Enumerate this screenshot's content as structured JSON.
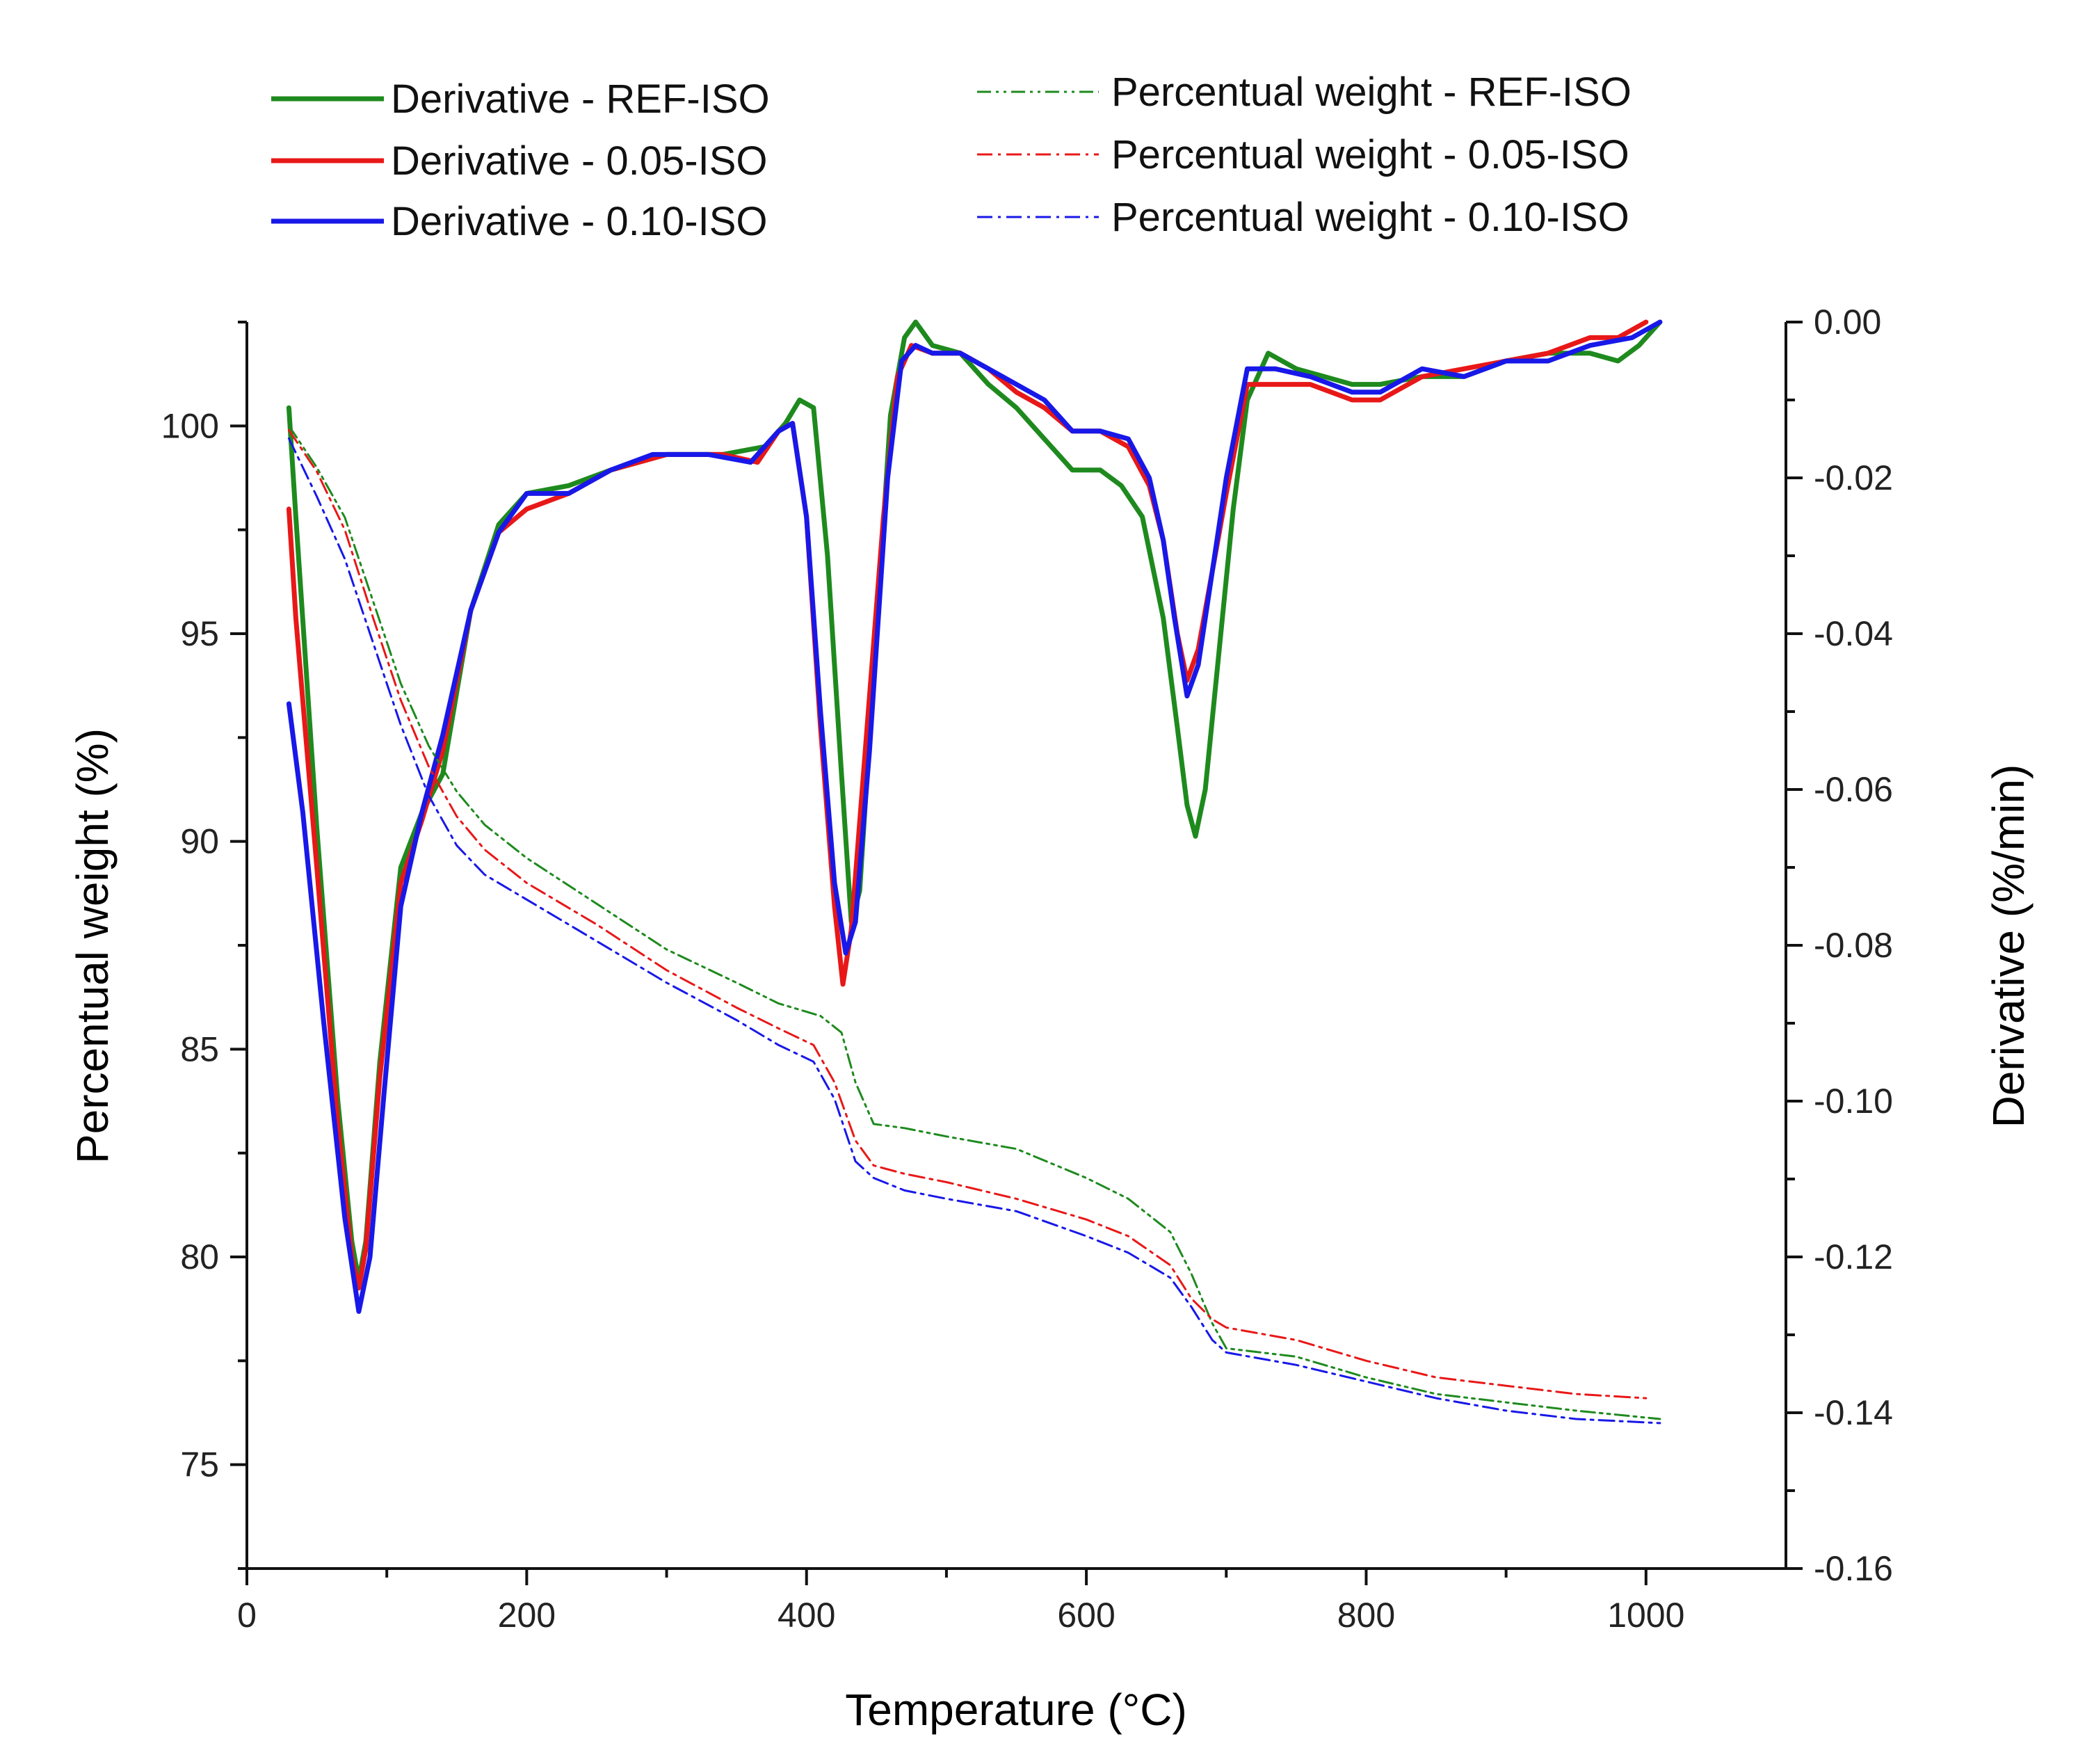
{
  "chart_data": {
    "type": "line",
    "title": "",
    "xlabel": "Temperature (°C)",
    "ylabel_left": "Percentual weight (%)",
    "ylabel_right": "Derivative (%/min)",
    "xlim": [
      0,
      1100
    ],
    "ylim_left": [
      72.5,
      102.5
    ],
    "ylim_right": [
      -0.16,
      0.0
    ],
    "x_ticks": [
      0,
      200,
      400,
      600,
      800,
      1000
    ],
    "x_tick_labels": [
      "0",
      "200",
      "400",
      "600",
      "800",
      "1000"
    ],
    "y_left_ticks": [
      75,
      80,
      85,
      90,
      95,
      100
    ],
    "y_left_tick_labels": [
      "75",
      "80",
      "85",
      "90",
      "95",
      "100"
    ],
    "y_right_ticks": [
      -0.16,
      -0.14,
      -0.12,
      -0.1,
      -0.08,
      -0.06,
      -0.04,
      -0.02,
      0.0
    ],
    "y_right_tick_labels": [
      "-0.16",
      "-0.14",
      "-0.12",
      "-0.10",
      "-0.08",
      "-0.06",
      "-0.04",
      "-0.02",
      "0.00"
    ],
    "grid": false,
    "legend_position": "top",
    "series": [
      {
        "name": "Derivative - REF-ISO",
        "axis": "right",
        "style": "solid",
        "color": "#1e8a1e",
        "points": [
          [
            30,
            -0.011
          ],
          [
            35,
            -0.025
          ],
          [
            50,
            -0.065
          ],
          [
            65,
            -0.1
          ],
          [
            75,
            -0.118
          ],
          [
            80,
            -0.123
          ],
          [
            85,
            -0.118
          ],
          [
            95,
            -0.095
          ],
          [
            110,
            -0.07
          ],
          [
            125,
            -0.063
          ],
          [
            140,
            -0.058
          ],
          [
            160,
            -0.037
          ],
          [
            180,
            -0.026
          ],
          [
            200,
            -0.022
          ],
          [
            230,
            -0.021
          ],
          [
            260,
            -0.019
          ],
          [
            300,
            -0.017
          ],
          [
            340,
            -0.017
          ],
          [
            370,
            -0.016
          ],
          [
            385,
            -0.013
          ],
          [
            395,
            -0.01
          ],
          [
            405,
            -0.011
          ],
          [
            415,
            -0.03
          ],
          [
            425,
            -0.058
          ],
          [
            432,
            -0.077
          ],
          [
            438,
            -0.073
          ],
          [
            448,
            -0.045
          ],
          [
            460,
            -0.012
          ],
          [
            470,
            -0.002
          ],
          [
            478,
            0.0
          ],
          [
            490,
            -0.003
          ],
          [
            510,
            -0.004
          ],
          [
            530,
            -0.008
          ],
          [
            550,
            -0.011
          ],
          [
            570,
            -0.015
          ],
          [
            590,
            -0.019
          ],
          [
            610,
            -0.019
          ],
          [
            625,
            -0.021
          ],
          [
            640,
            -0.025
          ],
          [
            655,
            -0.038
          ],
          [
            665,
            -0.052
          ],
          [
            672,
            -0.062
          ],
          [
            678,
            -0.066
          ],
          [
            685,
            -0.06
          ],
          [
            695,
            -0.042
          ],
          [
            705,
            -0.024
          ],
          [
            715,
            -0.01
          ],
          [
            730,
            -0.004
          ],
          [
            750,
            -0.006
          ],
          [
            770,
            -0.007
          ],
          [
            790,
            -0.008
          ],
          [
            810,
            -0.008
          ],
          [
            840,
            -0.007
          ],
          [
            870,
            -0.007
          ],
          [
            900,
            -0.005
          ],
          [
            930,
            -0.004
          ],
          [
            950,
            -0.004
          ],
          [
            960,
            -0.004
          ],
          [
            980,
            -0.005
          ],
          [
            995,
            -0.003
          ],
          [
            1010,
            0.0
          ]
        ]
      },
      {
        "name": "Derivative - 0.05-ISO",
        "axis": "right",
        "style": "solid",
        "color": "#e81818",
        "points": [
          [
            30,
            -0.024
          ],
          [
            35,
            -0.038
          ],
          [
            50,
            -0.07
          ],
          [
            65,
            -0.103
          ],
          [
            75,
            -0.12
          ],
          [
            80,
            -0.124
          ],
          [
            85,
            -0.119
          ],
          [
            95,
            -0.097
          ],
          [
            110,
            -0.072
          ],
          [
            125,
            -0.064
          ],
          [
            140,
            -0.055
          ],
          [
            160,
            -0.037
          ],
          [
            180,
            -0.027
          ],
          [
            200,
            -0.024
          ],
          [
            230,
            -0.022
          ],
          [
            260,
            -0.019
          ],
          [
            300,
            -0.017
          ],
          [
            340,
            -0.017
          ],
          [
            365,
            -0.018
          ],
          [
            380,
            -0.014
          ],
          [
            390,
            -0.013
          ],
          [
            400,
            -0.025
          ],
          [
            410,
            -0.052
          ],
          [
            420,
            -0.075
          ],
          [
            426,
            -0.085
          ],
          [
            432,
            -0.078
          ],
          [
            442,
            -0.055
          ],
          [
            455,
            -0.025
          ],
          [
            465,
            -0.007
          ],
          [
            475,
            -0.003
          ],
          [
            490,
            -0.004
          ],
          [
            510,
            -0.004
          ],
          [
            530,
            -0.006
          ],
          [
            550,
            -0.009
          ],
          [
            570,
            -0.011
          ],
          [
            590,
            -0.014
          ],
          [
            610,
            -0.014
          ],
          [
            630,
            -0.016
          ],
          [
            645,
            -0.021
          ],
          [
            655,
            -0.028
          ],
          [
            665,
            -0.04
          ],
          [
            672,
            -0.046
          ],
          [
            680,
            -0.042
          ],
          [
            690,
            -0.032
          ],
          [
            700,
            -0.022
          ],
          [
            715,
            -0.008
          ],
          [
            735,
            -0.008
          ],
          [
            760,
            -0.008
          ],
          [
            790,
            -0.01
          ],
          [
            810,
            -0.01
          ],
          [
            840,
            -0.007
          ],
          [
            870,
            -0.006
          ],
          [
            900,
            -0.005
          ],
          [
            930,
            -0.004
          ],
          [
            960,
            -0.002
          ],
          [
            980,
            -0.002
          ],
          [
            1000,
            0.0
          ]
        ]
      },
      {
        "name": "Derivative - 0.10-ISO",
        "axis": "right",
        "style": "solid",
        "color": "#1818e8",
        "points": [
          [
            30,
            -0.049
          ],
          [
            40,
            -0.063
          ],
          [
            55,
            -0.09
          ],
          [
            70,
            -0.115
          ],
          [
            80,
            -0.127
          ],
          [
            88,
            -0.12
          ],
          [
            98,
            -0.099
          ],
          [
            110,
            -0.075
          ],
          [
            125,
            -0.063
          ],
          [
            140,
            -0.053
          ],
          [
            160,
            -0.037
          ],
          [
            180,
            -0.027
          ],
          [
            200,
            -0.022
          ],
          [
            230,
            -0.022
          ],
          [
            260,
            -0.019
          ],
          [
            290,
            -0.017
          ],
          [
            330,
            -0.017
          ],
          [
            360,
            -0.018
          ],
          [
            380,
            -0.014
          ],
          [
            390,
            -0.013
          ],
          [
            400,
            -0.025
          ],
          [
            410,
            -0.05
          ],
          [
            420,
            -0.072
          ],
          [
            428,
            -0.081
          ],
          [
            435,
            -0.077
          ],
          [
            445,
            -0.055
          ],
          [
            458,
            -0.02
          ],
          [
            468,
            -0.005
          ],
          [
            478,
            -0.003
          ],
          [
            490,
            -0.004
          ],
          [
            510,
            -0.004
          ],
          [
            530,
            -0.006
          ],
          [
            550,
            -0.008
          ],
          [
            570,
            -0.01
          ],
          [
            590,
            -0.014
          ],
          [
            610,
            -0.014
          ],
          [
            630,
            -0.015
          ],
          [
            645,
            -0.02
          ],
          [
            655,
            -0.028
          ],
          [
            663,
            -0.038
          ],
          [
            672,
            -0.048
          ],
          [
            680,
            -0.044
          ],
          [
            690,
            -0.032
          ],
          [
            700,
            -0.02
          ],
          [
            715,
            -0.006
          ],
          [
            735,
            -0.006
          ],
          [
            760,
            -0.007
          ],
          [
            790,
            -0.009
          ],
          [
            810,
            -0.009
          ],
          [
            840,
            -0.006
          ],
          [
            870,
            -0.007
          ],
          [
            900,
            -0.005
          ],
          [
            930,
            -0.005
          ],
          [
            960,
            -0.003
          ],
          [
            990,
            -0.002
          ],
          [
            1010,
            0.0
          ]
        ]
      },
      {
        "name": "Percentual weight - REF-ISO",
        "axis": "left",
        "style": "dashdotdot",
        "color": "#1e8a1e",
        "points": [
          [
            30,
            100.0
          ],
          [
            50,
            99.0
          ],
          [
            70,
            97.8
          ],
          [
            90,
            95.8
          ],
          [
            110,
            93.8
          ],
          [
            130,
            92.3
          ],
          [
            150,
            91.2
          ],
          [
            170,
            90.4
          ],
          [
            200,
            89.6
          ],
          [
            250,
            88.5
          ],
          [
            300,
            87.4
          ],
          [
            350,
            86.6
          ],
          [
            380,
            86.1
          ],
          [
            410,
            85.8
          ],
          [
            425,
            85.4
          ],
          [
            435,
            84.2
          ],
          [
            448,
            83.2
          ],
          [
            470,
            83.1
          ],
          [
            500,
            82.9
          ],
          [
            550,
            82.6
          ],
          [
            600,
            81.9
          ],
          [
            630,
            81.4
          ],
          [
            660,
            80.6
          ],
          [
            675,
            79.6
          ],
          [
            690,
            78.4
          ],
          [
            700,
            77.8
          ],
          [
            750,
            77.6
          ],
          [
            800,
            77.1
          ],
          [
            850,
            76.7
          ],
          [
            900,
            76.5
          ],
          [
            950,
            76.3
          ],
          [
            1010,
            76.1
          ]
        ]
      },
      {
        "name": "Percentual weight - 0.05-ISO",
        "axis": "left",
        "style": "dashdot",
        "color": "#e81818",
        "points": [
          [
            30,
            99.9
          ],
          [
            50,
            98.9
          ],
          [
            70,
            97.5
          ],
          [
            90,
            95.4
          ],
          [
            110,
            93.4
          ],
          [
            130,
            91.8
          ],
          [
            150,
            90.6
          ],
          [
            170,
            89.8
          ],
          [
            200,
            89.0
          ],
          [
            250,
            88.0
          ],
          [
            300,
            86.9
          ],
          [
            350,
            86.0
          ],
          [
            380,
            85.5
          ],
          [
            405,
            85.1
          ],
          [
            420,
            84.2
          ],
          [
            435,
            82.8
          ],
          [
            448,
            82.2
          ],
          [
            470,
            82.0
          ],
          [
            500,
            81.8
          ],
          [
            550,
            81.4
          ],
          [
            600,
            80.9
          ],
          [
            630,
            80.5
          ],
          [
            660,
            79.8
          ],
          [
            675,
            79.0
          ],
          [
            690,
            78.5
          ],
          [
            700,
            78.3
          ],
          [
            750,
            78.0
          ],
          [
            800,
            77.5
          ],
          [
            850,
            77.1
          ],
          [
            900,
            76.9
          ],
          [
            950,
            76.7
          ],
          [
            1000,
            76.6
          ]
        ]
      },
      {
        "name": "Percentual weight - 0.10-ISO",
        "axis": "left",
        "style": "dashdot",
        "color": "#1818e8",
        "points": [
          [
            30,
            99.7
          ],
          [
            50,
            98.3
          ],
          [
            70,
            96.8
          ],
          [
            90,
            94.8
          ],
          [
            110,
            92.8
          ],
          [
            130,
            91.1
          ],
          [
            150,
            89.9
          ],
          [
            170,
            89.2
          ],
          [
            200,
            88.6
          ],
          [
            250,
            87.6
          ],
          [
            300,
            86.6
          ],
          [
            350,
            85.7
          ],
          [
            380,
            85.1
          ],
          [
            405,
            84.7
          ],
          [
            420,
            83.8
          ],
          [
            435,
            82.3
          ],
          [
            448,
            81.9
          ],
          [
            470,
            81.6
          ],
          [
            500,
            81.4
          ],
          [
            550,
            81.1
          ],
          [
            600,
            80.5
          ],
          [
            630,
            80.1
          ],
          [
            660,
            79.5
          ],
          [
            675,
            78.8
          ],
          [
            690,
            78.0
          ],
          [
            700,
            77.7
          ],
          [
            750,
            77.4
          ],
          [
            800,
            77.0
          ],
          [
            850,
            76.6
          ],
          [
            900,
            76.3
          ],
          [
            950,
            76.1
          ],
          [
            1010,
            76.0
          ]
        ]
      }
    ]
  }
}
